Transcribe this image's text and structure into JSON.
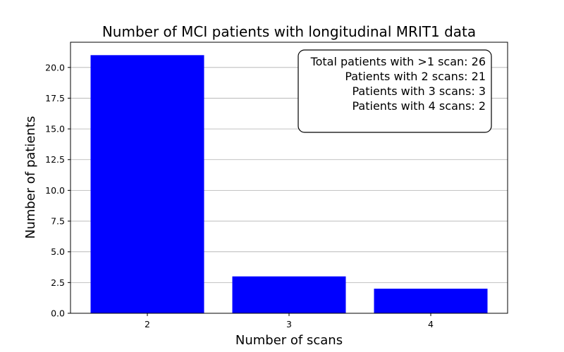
{
  "chart_data": {
    "type": "bar",
    "title": "Number of MCI patients with longitudinal MRIT1 data",
    "xlabel": "Number of scans",
    "ylabel": "Number of patients",
    "categories": [
      "2",
      "3",
      "4"
    ],
    "values": [
      21,
      3,
      2
    ],
    "ylim": [
      0,
      22.05
    ],
    "yticks": [
      "0.0",
      "2.5",
      "5.0",
      "7.5",
      "10.0",
      "12.5",
      "15.0",
      "17.5",
      "20.0"
    ],
    "ytick_values": [
      0,
      2.5,
      5,
      7.5,
      10,
      12.5,
      15,
      17.5,
      20
    ],
    "grid": "y-axis",
    "bar_color": "#0000ff",
    "annotation_lines": [
      "Total patients with >1 scan: 26",
      "Patients with 2 scans: 21",
      "Patients with 3 scans: 3",
      "Patients with 4 scans: 2"
    ],
    "annotation_placement": "top-right"
  }
}
